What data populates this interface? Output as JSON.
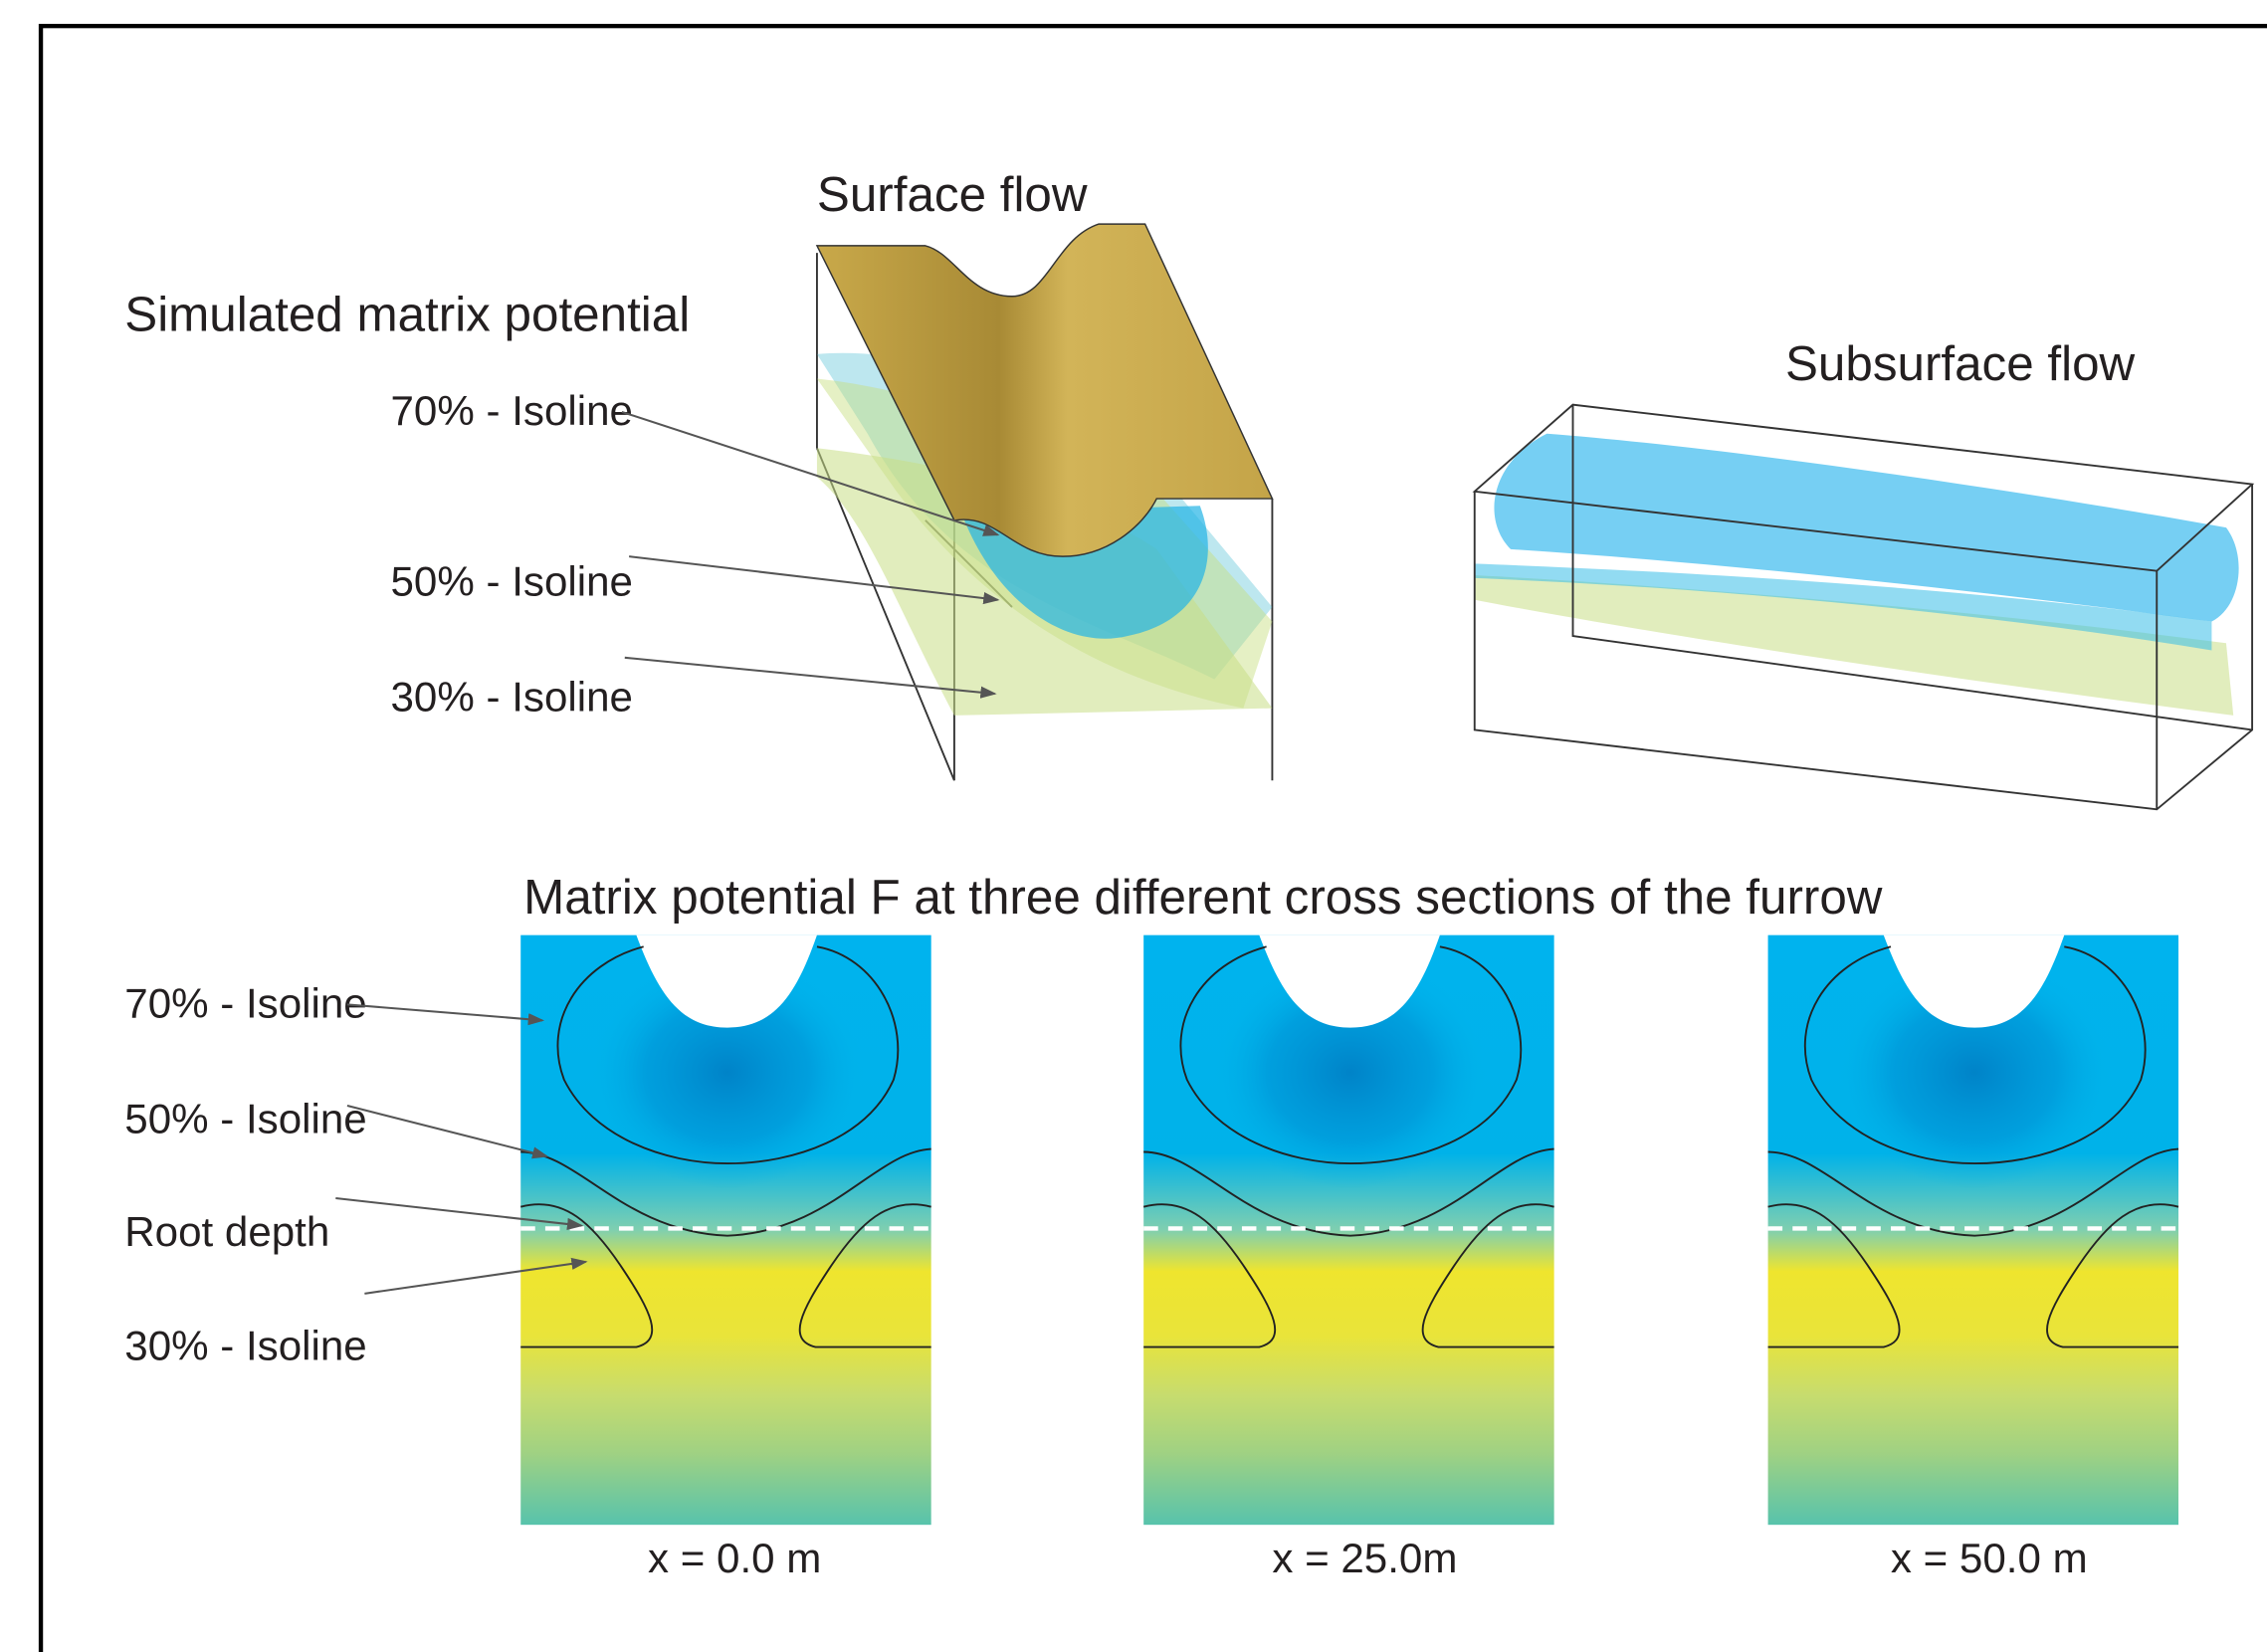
{
  "top": {
    "surface_title": "Surface flow",
    "subsurface_title": "Subsurface flow",
    "left_title": "Simulated matrix potential",
    "isolines": [
      "70% - Isoline",
      "50% - Isoline",
      "30% - Isoline"
    ]
  },
  "bottom": {
    "title": "Matrix potential F at three different cross sections of the furrow",
    "labels": [
      "70% - Isoline",
      "50% - Isoline",
      "Root depth",
      "30% - Isoline"
    ],
    "sections": [
      "x = 0.0 m",
      "x = 25.0m",
      "x = 50.0 m"
    ]
  }
}
